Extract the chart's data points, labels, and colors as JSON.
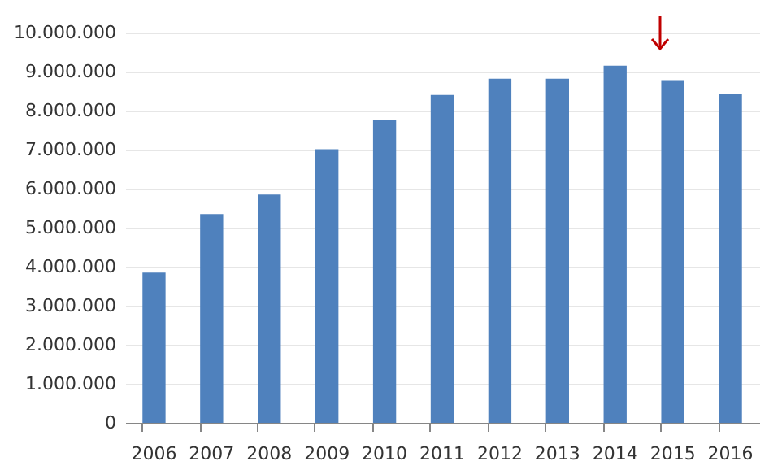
{
  "chart_data": {
    "type": "bar",
    "categories": [
      "2006",
      "2007",
      "2008",
      "2009",
      "2010",
      "2011",
      "2012",
      "2013",
      "2014",
      "2015",
      "2016"
    ],
    "values": [
      3850000,
      5350000,
      5850000,
      7010000,
      7760000,
      8400000,
      8820000,
      8820000,
      9150000,
      8780000,
      8430000
    ],
    "color": "#4f81bd",
    "ylim": [
      0,
      10000000
    ],
    "yticks": [
      {
        "value": 0,
        "label": "0"
      },
      {
        "value": 1000000,
        "label": "1.000.000"
      },
      {
        "value": 2000000,
        "label": "2.000.000"
      },
      {
        "value": 3000000,
        "label": "3.000.000"
      },
      {
        "value": 4000000,
        "label": "4.000.000"
      },
      {
        "value": 5000000,
        "label": "5.000.000"
      },
      {
        "value": 6000000,
        "label": "6.000.000"
      },
      {
        "value": 7000000,
        "label": "7.000.000"
      },
      {
        "value": 8000000,
        "label": "8.000.000"
      },
      {
        "value": 9000000,
        "label": "9.000.000"
      },
      {
        "value": 10000000,
        "label": "10.000.000"
      }
    ],
    "grid": "y"
  }
}
